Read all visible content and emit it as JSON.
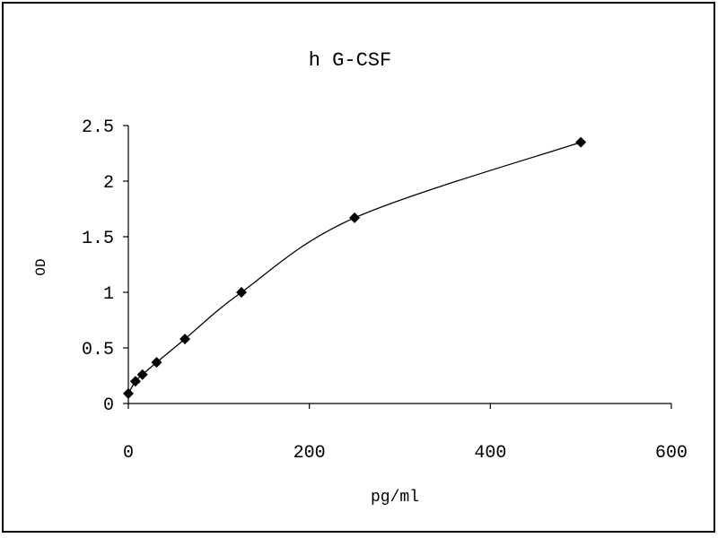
{
  "chart_data": {
    "type": "scatter",
    "title": "h G-CSF",
    "xlabel": "pg/ml",
    "ylabel": "OD",
    "xlim": [
      0,
      600
    ],
    "ylim": [
      0,
      2.5
    ],
    "x_ticks": [
      "0",
      "200",
      "400",
      "600"
    ],
    "y_ticks": [
      "0",
      "0.5",
      "1",
      "1.5",
      "2",
      "2.5"
    ],
    "grid": false,
    "legend": "none",
    "trendline": "smooth curve through points",
    "marker": "diamond",
    "color": "#000000",
    "series": [
      {
        "x": [
          0,
          7.8,
          15.6,
          31.25,
          62.5,
          125,
          250,
          500
        ],
        "y": [
          0.09,
          0.2,
          0.26,
          0.37,
          0.58,
          1.0,
          1.67,
          2.35
        ]
      }
    ]
  }
}
